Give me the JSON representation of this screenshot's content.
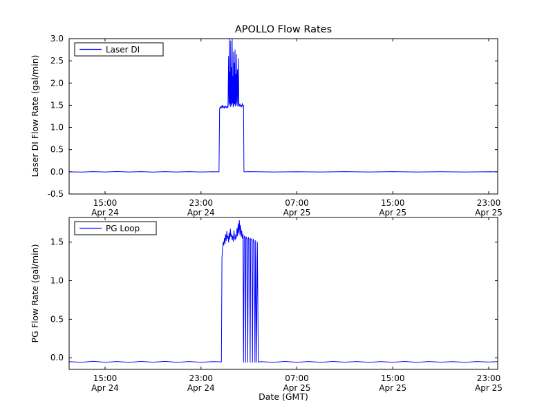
{
  "figure": {
    "title": "APOLLO Flow Rates",
    "xlabel": "Date (GMT)",
    "background_color": "#ffffff",
    "frame_color": "#000000",
    "line_color": "#0000ff"
  },
  "chart_data": [
    {
      "type": "line",
      "ylabel": "Laser DI Flow Rate (gal/min)",
      "legend": [
        "Laser DI"
      ],
      "legend_position": "upper left",
      "grid": false,
      "x_unit": "hours since Apr 24 12:00 GMT",
      "xlim": [
        0,
        35.75
      ],
      "ylim": [
        -0.5,
        3.0
      ],
      "yticks": [
        -0.5,
        0,
        0.5,
        1,
        1.5,
        2,
        2.5,
        3
      ],
      "ytick_labels": [
        "-0.5",
        "0.0",
        "0.5",
        "1.0",
        "1.5",
        "2.0",
        "2.5",
        "3.0"
      ],
      "xticks": [
        {
          "t": 3,
          "time": "15:00",
          "date": "Apr 24"
        },
        {
          "t": 11,
          "time": "23:00",
          "date": "Apr 24"
        },
        {
          "t": 19,
          "time": "07:00",
          "date": "Apr 25"
        },
        {
          "t": 27,
          "time": "15:00",
          "date": "Apr 25"
        },
        {
          "t": 35,
          "time": "23:00",
          "date": "Apr 25"
        }
      ],
      "series": [
        {
          "name": "Laser DI",
          "color": "#0000ff",
          "points": [
            [
              0,
              0
            ],
            [
              1,
              -0.005
            ],
            [
              2,
              0.004
            ],
            [
              3,
              -0.004
            ],
            [
              4,
              0.005
            ],
            [
              5,
              -0.004
            ],
            [
              6,
              0.004
            ],
            [
              7,
              -0.005
            ],
            [
              8,
              0.004
            ],
            [
              9,
              -0.004
            ],
            [
              10,
              0.004
            ],
            [
              11,
              -0.004
            ],
            [
              12,
              0.003
            ],
            [
              12.5,
              0
            ],
            [
              12.55,
              1.42
            ],
            [
              12.6,
              1.46
            ],
            [
              12.65,
              1.43
            ],
            [
              12.7,
              1.48
            ],
            [
              12.75,
              1.44
            ],
            [
              12.8,
              1.5
            ],
            [
              12.85,
              1.45
            ],
            [
              12.9,
              1.47
            ],
            [
              12.95,
              1.43
            ],
            [
              13.0,
              1.49
            ],
            [
              13.05,
              1.45
            ],
            [
              13.1,
              1.47
            ],
            [
              13.15,
              1.44
            ],
            [
              13.2,
              1.48
            ],
            [
              13.25,
              1.45
            ],
            [
              13.3,
              2.6
            ],
            [
              13.33,
              1.5
            ],
            [
              13.36,
              3.0
            ],
            [
              13.39,
              1.55
            ],
            [
              13.42,
              2.25
            ],
            [
              13.45,
              1.47
            ],
            [
              13.48,
              2.95
            ],
            [
              13.51,
              1.52
            ],
            [
              13.54,
              2.35
            ],
            [
              13.57,
              1.48
            ],
            [
              13.6,
              3.0
            ],
            [
              13.63,
              1.55
            ],
            [
              13.66,
              2.15
            ],
            [
              13.69,
              1.46
            ],
            [
              13.72,
              2.7
            ],
            [
              13.75,
              1.5
            ],
            [
              13.78,
              2.45
            ],
            [
              13.81,
              1.53
            ],
            [
              13.84,
              2.75
            ],
            [
              13.87,
              1.48
            ],
            [
              13.9,
              2.2
            ],
            [
              13.93,
              1.55
            ],
            [
              13.96,
              2.65
            ],
            [
              14.0,
              1.5
            ],
            [
              14.04,
              2.3
            ],
            [
              14.08,
              1.47
            ],
            [
              14.12,
              2.55
            ],
            [
              14.16,
              1.52
            ],
            [
              14.2,
              1.48
            ],
            [
              14.25,
              1.53
            ],
            [
              14.3,
              1.47
            ],
            [
              14.35,
              1.5
            ],
            [
              14.4,
              1.46
            ],
            [
              14.45,
              1.54
            ],
            [
              14.5,
              1.49
            ],
            [
              14.55,
              1.5
            ],
            [
              14.58,
              0
            ],
            [
              15,
              0.004
            ],
            [
              17,
              -0.004
            ],
            [
              19,
              0.003
            ],
            [
              21,
              -0.004
            ],
            [
              23,
              0.004
            ],
            [
              25,
              -0.003
            ],
            [
              27,
              0.004
            ],
            [
              29,
              -0.004
            ],
            [
              31,
              0.003
            ],
            [
              33,
              -0.004
            ],
            [
              35,
              0.003
            ],
            [
              35.75,
              0
            ]
          ]
        }
      ]
    },
    {
      "type": "line",
      "ylabel": "PG Flow Rate (gal/min)",
      "legend": [
        "PG Loop"
      ],
      "legend_position": "upper left",
      "grid": false,
      "x_unit": "hours since Apr 24 12:00 GMT",
      "xlim": [
        0,
        35.75
      ],
      "ylim": [
        -0.15,
        1.82
      ],
      "yticks": [
        0,
        0.5,
        1,
        1.5
      ],
      "ytick_labels": [
        "0.0",
        "0.5",
        "1.0",
        "1.5"
      ],
      "xticks": [
        {
          "t": 3,
          "time": "15:00",
          "date": "Apr 24"
        },
        {
          "t": 11,
          "time": "23:00",
          "date": "Apr 24"
        },
        {
          "t": 19,
          "time": "07:00",
          "date": "Apr 25"
        },
        {
          "t": 27,
          "time": "15:00",
          "date": "Apr 25"
        },
        {
          "t": 35,
          "time": "23:00",
          "date": "Apr 25"
        }
      ],
      "series": [
        {
          "name": "PG Loop",
          "color": "#0000ff",
          "points": [
            [
              0,
              -0.05
            ],
            [
              1,
              -0.06
            ],
            [
              2,
              -0.045
            ],
            [
              3,
              -0.058
            ],
            [
              4,
              -0.048
            ],
            [
              5,
              -0.06
            ],
            [
              6,
              -0.047
            ],
            [
              7,
              -0.057
            ],
            [
              8,
              -0.046
            ],
            [
              9,
              -0.06
            ],
            [
              10,
              -0.048
            ],
            [
              11,
              -0.058
            ],
            [
              12,
              -0.05
            ],
            [
              12.7,
              -0.052
            ],
            [
              12.75,
              1.3
            ],
            [
              12.8,
              1.42
            ],
            [
              12.85,
              1.5
            ],
            [
              12.9,
              1.46
            ],
            [
              12.95,
              1.55
            ],
            [
              13.0,
              1.48
            ],
            [
              13.05,
              1.6
            ],
            [
              13.1,
              1.52
            ],
            [
              13.15,
              1.64
            ],
            [
              13.2,
              1.55
            ],
            [
              13.25,
              1.58
            ],
            [
              13.3,
              1.5
            ],
            [
              13.35,
              1.62
            ],
            [
              13.4,
              1.54
            ],
            [
              13.45,
              1.67
            ],
            [
              13.5,
              1.57
            ],
            [
              13.55,
              1.6
            ],
            [
              13.6,
              1.53
            ],
            [
              13.65,
              1.58
            ],
            [
              13.7,
              1.51
            ],
            [
              13.75,
              1.65
            ],
            [
              13.8,
              1.56
            ],
            [
              13.85,
              1.53
            ],
            [
              13.9,
              1.6
            ],
            [
              13.95,
              1.55
            ],
            [
              14.0,
              1.68
            ],
            [
              14.05,
              1.58
            ],
            [
              14.1,
              1.74
            ],
            [
              14.15,
              1.62
            ],
            [
              14.2,
              1.78
            ],
            [
              14.25,
              1.6
            ],
            [
              14.3,
              1.72
            ],
            [
              14.35,
              1.57
            ],
            [
              14.4,
              1.65
            ],
            [
              14.45,
              1.55
            ],
            [
              14.5,
              1.6
            ],
            [
              14.55,
              -0.06
            ],
            [
              14.6,
              1.58
            ],
            [
              14.68,
              1.55
            ],
            [
              14.72,
              -0.06
            ],
            [
              14.76,
              1.57
            ],
            [
              14.85,
              1.54
            ],
            [
              14.9,
              -0.06
            ],
            [
              14.95,
              1.56
            ],
            [
              15.05,
              1.53
            ],
            [
              15.1,
              -0.06
            ],
            [
              15.15,
              1.55
            ],
            [
              15.25,
              1.52
            ],
            [
              15.3,
              -0.06
            ],
            [
              15.35,
              1.54
            ],
            [
              15.45,
              1.5
            ],
            [
              15.5,
              -0.06
            ],
            [
              15.55,
              1.52
            ],
            [
              15.62,
              -0.06
            ],
            [
              15.7,
              1.5
            ],
            [
              15.78,
              -0.06
            ],
            [
              15.85,
              -0.052
            ],
            [
              16,
              -0.05
            ],
            [
              17,
              -0.06
            ],
            [
              18,
              -0.047
            ],
            [
              19,
              -0.058
            ],
            [
              20,
              -0.048
            ],
            [
              21,
              -0.06
            ],
            [
              22,
              -0.047
            ],
            [
              23,
              -0.057
            ],
            [
              24,
              -0.048
            ],
            [
              25,
              -0.06
            ],
            [
              26,
              -0.05
            ],
            [
              27,
              -0.058
            ],
            [
              28,
              -0.047
            ],
            [
              29,
              -0.06
            ],
            [
              30,
              -0.048
            ],
            [
              31,
              -0.057
            ],
            [
              32,
              -0.05
            ],
            [
              33,
              -0.06
            ],
            [
              34,
              -0.048
            ],
            [
              35,
              -0.055
            ],
            [
              35.75,
              -0.05
            ]
          ]
        }
      ]
    }
  ]
}
